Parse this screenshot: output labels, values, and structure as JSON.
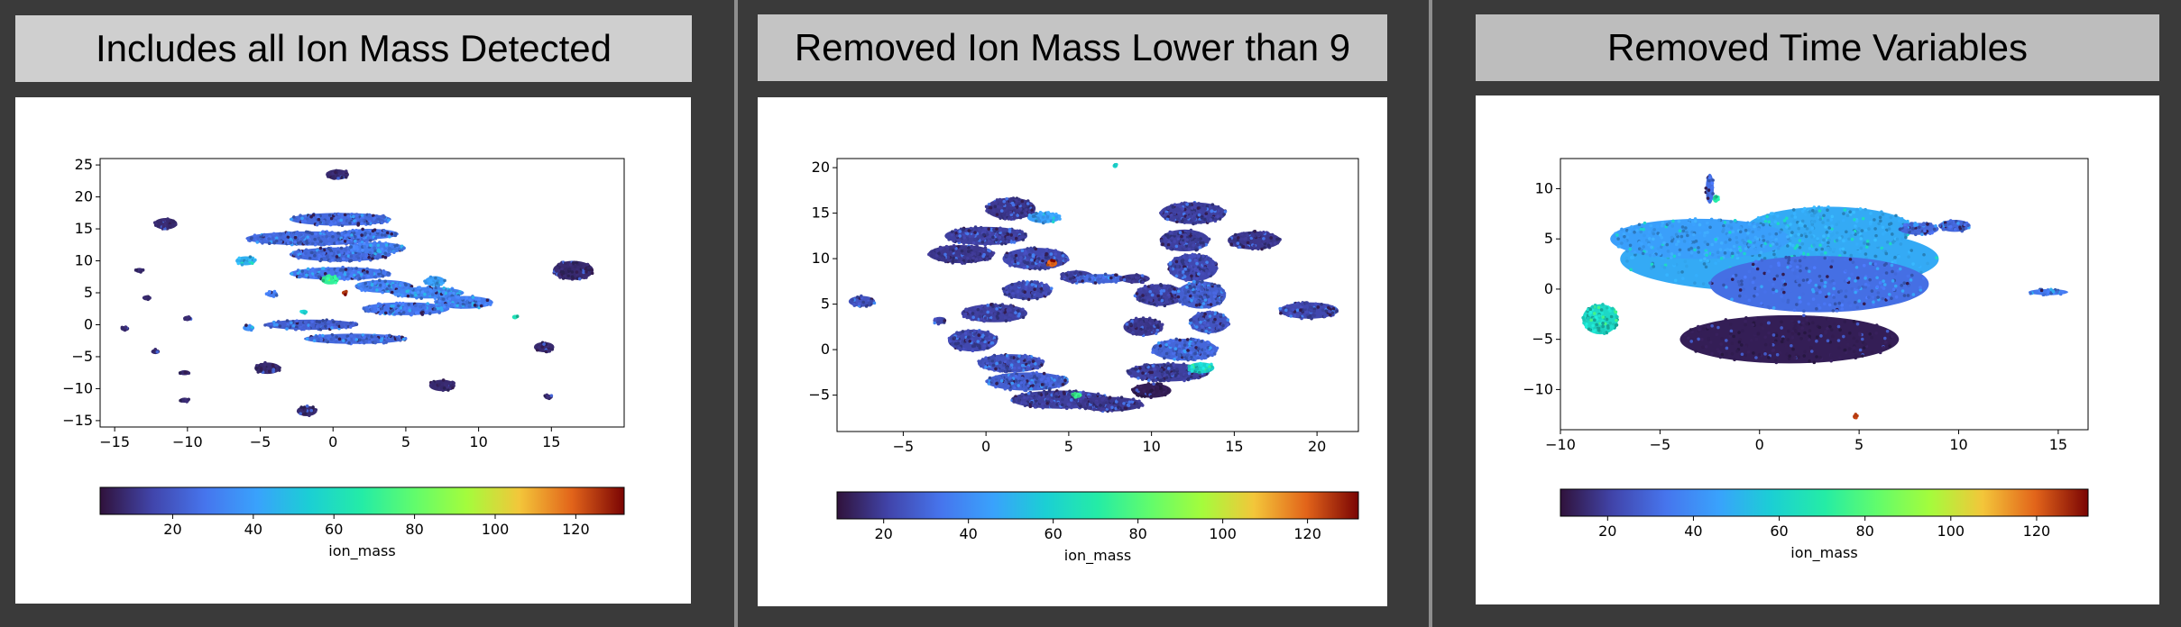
{
  "panels": [
    {
      "title": "Includes all Ion Mass Detected",
      "chart_data": {
        "type": "scatter",
        "colorbar_label": "ion_mass",
        "colorbar_ticks": [
          "20",
          "40",
          "60",
          "80",
          "100",
          "120"
        ],
        "colorbar_range": [
          2,
          132
        ],
        "xlim": [
          -16,
          20
        ],
        "ylim": [
          -16,
          26
        ],
        "xticks": [
          -15,
          -10,
          -5,
          0,
          5,
          10,
          15
        ],
        "yticks": [
          25,
          20,
          15,
          10,
          5,
          0,
          -5,
          -10,
          -15
        ],
        "colormap": "turbo",
        "clusters": [
          {
            "x": 0.3,
            "y": 23.5,
            "rx": 0.8,
            "ry": 0.8,
            "ion_mass": 8
          },
          {
            "x": -11.5,
            "y": 15.8,
            "rx": 0.8,
            "ry": 0.9,
            "ion_mass": 8
          },
          {
            "x": -13.3,
            "y": 8.5,
            "rx": 0.3,
            "ry": 0.4,
            "ion_mass": 8
          },
          {
            "x": -12.8,
            "y": 4.2,
            "rx": 0.3,
            "ry": 0.4,
            "ion_mass": 8
          },
          {
            "x": -14.3,
            "y": -0.6,
            "rx": 0.3,
            "ry": 0.4,
            "ion_mass": 8
          },
          {
            "x": -10.0,
            "y": 1.0,
            "rx": 0.3,
            "ry": 0.4,
            "ion_mass": 8
          },
          {
            "x": -12.2,
            "y": -4.2,
            "rx": 0.3,
            "ry": 0.4,
            "ion_mass": 8
          },
          {
            "x": -10.2,
            "y": -7.5,
            "rx": 0.35,
            "ry": 0.4,
            "ion_mass": 8
          },
          {
            "x": -10.2,
            "y": -11.8,
            "rx": 0.35,
            "ry": 0.4,
            "ion_mass": 8
          },
          {
            "x": -4.5,
            "y": -6.8,
            "rx": 0.9,
            "ry": 0.9,
            "ion_mass": 8
          },
          {
            "x": -1.8,
            "y": -13.5,
            "rx": 0.7,
            "ry": 0.8,
            "ion_mass": 8
          },
          {
            "x": 7.5,
            "y": -9.5,
            "rx": 0.9,
            "ry": 0.9,
            "ion_mass": 8
          },
          {
            "x": 14.5,
            "y": -3.5,
            "rx": 0.7,
            "ry": 0.8,
            "ion_mass": 8
          },
          {
            "x": 14.8,
            "y": -11.3,
            "rx": 0.3,
            "ry": 0.4,
            "ion_mass": 8
          },
          {
            "x": 16.5,
            "y": 8.5,
            "rx": 1.4,
            "ry": 1.5,
            "ion_mass": 8
          },
          {
            "x": -6.0,
            "y": 10.0,
            "rx": 0.7,
            "ry": 0.7,
            "ion_mass": 45
          },
          {
            "x": -5.8,
            "y": -0.5,
            "rx": 0.4,
            "ry": 0.5,
            "ion_mass": 35
          },
          {
            "x": -4.2,
            "y": 4.8,
            "rx": 0.4,
            "ry": 0.5,
            "ion_mass": 30
          },
          {
            "x": 0.5,
            "y": 16.5,
            "rx": 3.5,
            "ry": 1.0,
            "ion_mass": 25
          },
          {
            "x": -1.5,
            "y": 13.5,
            "rx": 4.5,
            "ry": 1.1,
            "ion_mass": 25
          },
          {
            "x": 2.5,
            "y": 14.2,
            "rx": 2.0,
            "ry": 0.8,
            "ion_mass": 28
          },
          {
            "x": 0.5,
            "y": 11.0,
            "rx": 3.5,
            "ry": 1.1,
            "ion_mass": 25
          },
          {
            "x": 3.0,
            "y": 12.0,
            "rx": 2.0,
            "ry": 0.9,
            "ion_mass": 30
          },
          {
            "x": 0.5,
            "y": 8.0,
            "rx": 3.5,
            "ry": 1.0,
            "ion_mass": 28
          },
          {
            "x": 3.5,
            "y": 6.0,
            "rx": 2.0,
            "ry": 1.0,
            "ion_mass": 30
          },
          {
            "x": 6.5,
            "y": 5.0,
            "rx": 2.5,
            "ry": 0.9,
            "ion_mass": 32
          },
          {
            "x": 5.0,
            "y": 2.5,
            "rx": 3.0,
            "ry": 1.0,
            "ion_mass": 28
          },
          {
            "x": 9.0,
            "y": 3.5,
            "rx": 2.0,
            "ry": 1.0,
            "ion_mass": 30
          },
          {
            "x": 7.0,
            "y": 6.8,
            "rx": 0.7,
            "ry": 0.8,
            "ion_mass": 40
          },
          {
            "x": -1.5,
            "y": 0.0,
            "rx": 3.2,
            "ry": 0.8,
            "ion_mass": 22
          },
          {
            "x": 1.5,
            "y": -2.2,
            "rx": 3.5,
            "ry": 0.8,
            "ion_mass": 25
          },
          {
            "x": -0.2,
            "y": 7.0,
            "rx": 0.6,
            "ry": 0.7,
            "ion_mass": 70
          },
          {
            "x": 0.8,
            "y": 5.0,
            "rx": 0.2,
            "ry": 0.3,
            "ion_mass": 125
          },
          {
            "x": -2.0,
            "y": 2.0,
            "rx": 0.25,
            "ry": 0.3,
            "ion_mass": 55
          },
          {
            "x": 12.5,
            "y": 1.2,
            "rx": 0.2,
            "ry": 0.3,
            "ion_mass": 62
          }
        ]
      }
    },
    {
      "title": "Removed Ion Mass Lower than 9",
      "chart_data": {
        "type": "scatter",
        "colorbar_label": "ion_mass",
        "colorbar_ticks": [
          "20",
          "40",
          "60",
          "80",
          "100",
          "120"
        ],
        "colorbar_range": [
          9,
          132
        ],
        "xlim": [
          -9,
          22.5
        ],
        "ylim": [
          -9,
          21
        ],
        "xticks": [
          -5,
          0,
          5,
          10,
          15,
          20
        ],
        "yticks": [
          20,
          15,
          10,
          5,
          0,
          -5
        ],
        "colormap": "turbo",
        "clusters": [
          {
            "x": -7.5,
            "y": 5.3,
            "rx": 0.8,
            "ry": 0.6,
            "ion_mass": 25
          },
          {
            "x": -2.8,
            "y": 3.2,
            "rx": 0.4,
            "ry": 0.4,
            "ion_mass": 22
          },
          {
            "x": 1.5,
            "y": 15.5,
            "rx": 1.5,
            "ry": 1.2,
            "ion_mass": 18
          },
          {
            "x": 0.0,
            "y": 12.5,
            "rx": 2.5,
            "ry": 1.0,
            "ion_mass": 20
          },
          {
            "x": -1.5,
            "y": 10.5,
            "rx": 2.0,
            "ry": 1.0,
            "ion_mass": 18
          },
          {
            "x": 3.0,
            "y": 10.0,
            "rx": 2.0,
            "ry": 1.2,
            "ion_mass": 22
          },
          {
            "x": 2.5,
            "y": 6.5,
            "rx": 1.5,
            "ry": 1.0,
            "ion_mass": 22
          },
          {
            "x": 5.5,
            "y": 8.0,
            "rx": 1.0,
            "ry": 0.7,
            "ion_mass": 20
          },
          {
            "x": 0.5,
            "y": 4.0,
            "rx": 2.0,
            "ry": 1.0,
            "ion_mass": 20
          },
          {
            "x": -0.8,
            "y": 1.0,
            "rx": 1.5,
            "ry": 1.2,
            "ion_mass": 22
          },
          {
            "x": 1.5,
            "y": -1.5,
            "rx": 2.0,
            "ry": 1.0,
            "ion_mass": 25
          },
          {
            "x": 2.5,
            "y": -3.5,
            "rx": 2.5,
            "ry": 1.0,
            "ion_mass": 28
          },
          {
            "x": 4.5,
            "y": -5.5,
            "rx": 3.0,
            "ry": 1.0,
            "ion_mass": 20
          },
          {
            "x": 7.5,
            "y": -6.0,
            "rx": 2.0,
            "ry": 0.8,
            "ion_mass": 18
          },
          {
            "x": 3.5,
            "y": 14.5,
            "rx": 1.0,
            "ry": 0.6,
            "ion_mass": 45
          },
          {
            "x": 4.0,
            "y": 9.5,
            "rx": 0.3,
            "ry": 0.4,
            "ion_mass": 120
          },
          {
            "x": 7.0,
            "y": 7.8,
            "rx": 1.5,
            "ry": 0.5,
            "ion_mass": 30
          },
          {
            "x": 9.0,
            "y": 7.8,
            "rx": 0.9,
            "ry": 0.5,
            "ion_mass": 18
          },
          {
            "x": 12.5,
            "y": 15.0,
            "rx": 2.0,
            "ry": 1.2,
            "ion_mass": 20
          },
          {
            "x": 12.0,
            "y": 12.0,
            "rx": 1.5,
            "ry": 1.2,
            "ion_mass": 20
          },
          {
            "x": 12.5,
            "y": 9.0,
            "rx": 1.5,
            "ry": 1.5,
            "ion_mass": 22
          },
          {
            "x": 10.5,
            "y": 6.0,
            "rx": 1.5,
            "ry": 1.2,
            "ion_mass": 20
          },
          {
            "x": 13.0,
            "y": 6.0,
            "rx": 1.5,
            "ry": 1.5,
            "ion_mass": 28
          },
          {
            "x": 13.5,
            "y": 3.0,
            "rx": 1.2,
            "ry": 1.2,
            "ion_mass": 25
          },
          {
            "x": 9.5,
            "y": 2.5,
            "rx": 1.2,
            "ry": 1.0,
            "ion_mass": 18
          },
          {
            "x": 12.0,
            "y": 0.0,
            "rx": 2.0,
            "ry": 1.2,
            "ion_mass": 30
          },
          {
            "x": 11.0,
            "y": -2.5,
            "rx": 2.5,
            "ry": 1.0,
            "ion_mass": 20
          },
          {
            "x": 10.0,
            "y": -4.5,
            "rx": 1.2,
            "ry": 0.8,
            "ion_mass": 12
          },
          {
            "x": 13.0,
            "y": -2.0,
            "rx": 0.8,
            "ry": 0.6,
            "ion_mass": 60
          },
          {
            "x": 16.2,
            "y": 12.0,
            "rx": 1.6,
            "ry": 1.0,
            "ion_mass": 18
          },
          {
            "x": 19.5,
            "y": 4.3,
            "rx": 1.8,
            "ry": 0.9,
            "ion_mass": 22
          },
          {
            "x": 7.8,
            "y": 20.2,
            "rx": 0.15,
            "ry": 0.2,
            "ion_mass": 60
          },
          {
            "x": 5.5,
            "y": -5.0,
            "rx": 0.3,
            "ry": 0.3,
            "ion_mass": 75
          }
        ]
      }
    },
    {
      "title": "Removed Time Variables",
      "chart_data": {
        "type": "scatter",
        "colorbar_label": "ion_mass",
        "colorbar_ticks": [
          "20",
          "40",
          "60",
          "80",
          "100",
          "120"
        ],
        "colorbar_range": [
          9,
          132
        ],
        "xlim": [
          -10,
          16.5
        ],
        "ylim": [
          -14,
          13
        ],
        "xticks": [
          -10,
          -5,
          0,
          5,
          10,
          15
        ],
        "yticks": [
          10,
          5,
          0,
          -5,
          -10
        ],
        "colormap": "turbo",
        "clusters": [
          {
            "x": 1.0,
            "y": 3.0,
            "rx": 8.0,
            "ry": 3.3,
            "ion_mass": 48
          },
          {
            "x": 3.5,
            "y": 6.0,
            "rx": 4.2,
            "ry": 2.2,
            "ion_mass": 48
          },
          {
            "x": -3.0,
            "y": 5.0,
            "rx": 4.5,
            "ry": 2.0,
            "ion_mass": 45
          },
          {
            "x": 3.0,
            "y": 0.5,
            "rx": 5.5,
            "ry": 2.8,
            "ion_mass": 32
          },
          {
            "x": 1.5,
            "y": -5.0,
            "rx": 5.5,
            "ry": 2.4,
            "ion_mass": 12
          },
          {
            "x": -2.5,
            "y": 10.0,
            "rx": 0.2,
            "ry": 1.5,
            "ion_mass": 32
          },
          {
            "x": -2.2,
            "y": 9.0,
            "rx": 0.15,
            "ry": 0.4,
            "ion_mass": 70
          },
          {
            "x": -8.0,
            "y": -3.0,
            "rx": 0.9,
            "ry": 1.5,
            "ion_mass": 62
          },
          {
            "x": 8.0,
            "y": 6.0,
            "rx": 1.0,
            "ry": 0.6,
            "ion_mass": 30
          },
          {
            "x": 9.8,
            "y": 6.3,
            "rx": 0.8,
            "ry": 0.6,
            "ion_mass": 30
          },
          {
            "x": 14.5,
            "y": -0.3,
            "rx": 1.0,
            "ry": 0.3,
            "ion_mass": 35
          },
          {
            "x": 4.8,
            "y": -12.7,
            "rx": 0.12,
            "ry": 0.25,
            "ion_mass": 125
          }
        ]
      }
    }
  ]
}
